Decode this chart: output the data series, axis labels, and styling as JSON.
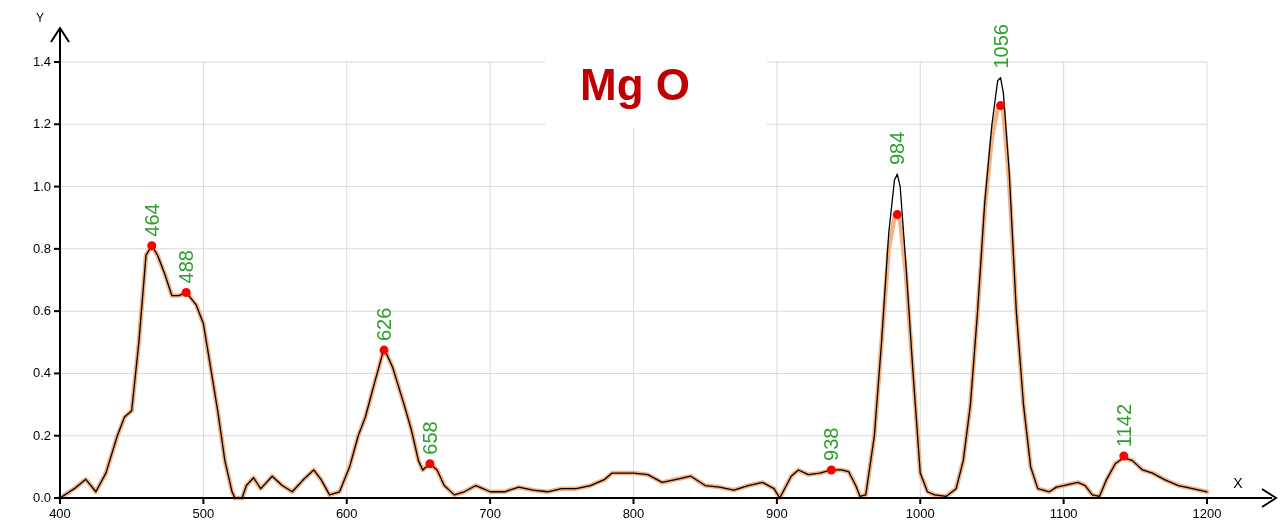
{
  "chart_data": {
    "type": "line",
    "title": "Mg O",
    "xlabel": "X",
    "ylabel": "Y",
    "xlim": [
      400,
      1200
    ],
    "ylim": [
      0,
      1.4
    ],
    "xticks": [
      400,
      500,
      600,
      700,
      800,
      900,
      1000,
      1100,
      1200
    ],
    "yticks": [
      {
        "value": 0,
        "label": "0.0"
      },
      {
        "value": 0.2,
        "label": "0.2"
      },
      {
        "value": 0.4,
        "label": "0.4"
      },
      {
        "value": 0.6,
        "label": "0.6"
      },
      {
        "value": 0.8,
        "label": "0.8"
      },
      {
        "value": 1.0,
        "label": "1.0"
      },
      {
        "value": 1.2,
        "label": "1.2"
      },
      {
        "value": 1.4,
        "label": "1.4"
      }
    ],
    "grid": true,
    "marker": "none",
    "line_style": "solid",
    "series": [
      {
        "color": "#f4b183",
        "x": [
          400,
          410,
          418,
          425,
          432,
          440,
          445,
          450,
          455,
          460,
          464,
          468,
          473,
          478,
          483,
          488,
          495,
          500,
          505,
          510,
          515,
          520,
          522,
          527,
          530,
          535,
          540,
          548,
          555,
          562,
          570,
          577,
          582,
          588,
          595,
          602,
          608,
          613,
          620,
          626,
          632,
          640,
          645,
          650,
          653,
          658,
          663,
          668,
          675,
          682,
          690,
          695,
          700,
          710,
          720,
          730,
          740,
          750,
          760,
          770,
          780,
          785,
          795,
          800,
          810,
          820,
          830,
          840,
          850,
          860,
          870,
          880,
          890,
          898,
          902,
          910,
          915,
          922,
          930,
          938,
          945,
          950,
          955,
          958,
          962,
          968,
          973,
          978,
          982,
          984,
          986,
          990,
          995,
          1000,
          1005,
          1010,
          1018,
          1025,
          1030,
          1035,
          1040,
          1045,
          1050,
          1054,
          1056,
          1058,
          1062,
          1067,
          1072,
          1077,
          1082,
          1090,
          1095,
          1100,
          1110,
          1115,
          1120,
          1125,
          1130,
          1136,
          1142,
          1148,
          1155,
          1162,
          1170,
          1180,
          1190,
          1200
        ],
        "values": [
          0,
          0.03,
          0.06,
          0.02,
          0.08,
          0.2,
          0.26,
          0.28,
          0.5,
          0.78,
          0.81,
          0.78,
          0.72,
          0.65,
          0.65,
          0.66,
          0.62,
          0.56,
          0.42,
          0.28,
          0.12,
          0.02,
          0,
          0,
          0.04,
          0.065,
          0.03,
          0.07,
          0.04,
          0.02,
          0.06,
          0.09,
          0.06,
          0.01,
          0.02,
          0.1,
          0.2,
          0.26,
          0.38,
          0.48,
          0.42,
          0.3,
          0.22,
          0.12,
          0.09,
          0.11,
          0.09,
          0.04,
          0.01,
          0.02,
          0.04,
          0.03,
          0.02,
          0.02,
          0.035,
          0.025,
          0.02,
          0.03,
          0.03,
          0.04,
          0.06,
          0.08,
          0.08,
          0.08,
          0.075,
          0.05,
          0.06,
          0.07,
          0.04,
          0.035,
          0.025,
          0.04,
          0.05,
          0.03,
          0,
          0.07,
          0.09,
          0.075,
          0.08,
          0.09,
          0.09,
          0.085,
          0.04,
          0.005,
          0.01,
          0.2,
          0.5,
          0.8,
          0.9,
          0.91,
          0.89,
          0.72,
          0.4,
          0.08,
          0.02,
          0.01,
          0.005,
          0.03,
          0.12,
          0.3,
          0.6,
          0.93,
          1.16,
          1.25,
          1.26,
          1.24,
          1.02,
          0.6,
          0.3,
          0.1,
          0.03,
          0.02,
          0.035,
          0.04,
          0.05,
          0.04,
          0.01,
          0.005,
          0.06,
          0.11,
          0.13,
          0.12,
          0.09,
          0.08,
          0.06,
          0.04,
          0.03,
          0.02
        ]
      },
      {
        "color": "#000000",
        "x": [
          400,
          410,
          418,
          425,
          432,
          440,
          445,
          450,
          455,
          460,
          464,
          468,
          473,
          478,
          483,
          488,
          495,
          500,
          505,
          510,
          515,
          520,
          522,
          527,
          530,
          535,
          540,
          548,
          555,
          562,
          570,
          577,
          582,
          588,
          595,
          602,
          608,
          613,
          620,
          626,
          632,
          640,
          645,
          650,
          653,
          658,
          663,
          668,
          675,
          682,
          690,
          695,
          700,
          710,
          720,
          730,
          740,
          750,
          760,
          770,
          780,
          785,
          795,
          800,
          810,
          820,
          830,
          840,
          850,
          860,
          870,
          880,
          890,
          898,
          902,
          910,
          915,
          922,
          930,
          938,
          945,
          950,
          955,
          958,
          962,
          968,
          973,
          978,
          982,
          984,
          986,
          990,
          995,
          1000,
          1005,
          1010,
          1018,
          1025,
          1030,
          1035,
          1040,
          1045,
          1050,
          1054,
          1056,
          1058,
          1062,
          1067,
          1072,
          1077,
          1082,
          1090,
          1095,
          1100,
          1110,
          1115,
          1120,
          1125,
          1130,
          1136,
          1142,
          1148,
          1155,
          1162,
          1170,
          1180,
          1190,
          1200
        ],
        "values": [
          0,
          0.03,
          0.06,
          0.02,
          0.08,
          0.2,
          0.26,
          0.28,
          0.5,
          0.78,
          0.81,
          0.78,
          0.72,
          0.65,
          0.65,
          0.66,
          0.62,
          0.56,
          0.42,
          0.28,
          0.12,
          0.02,
          0,
          0,
          0.04,
          0.065,
          0.03,
          0.07,
          0.04,
          0.02,
          0.06,
          0.09,
          0.06,
          0.01,
          0.02,
          0.1,
          0.2,
          0.26,
          0.38,
          0.48,
          0.42,
          0.3,
          0.22,
          0.12,
          0.09,
          0.11,
          0.09,
          0.04,
          0.01,
          0.02,
          0.04,
          0.03,
          0.02,
          0.02,
          0.035,
          0.025,
          0.02,
          0.03,
          0.03,
          0.04,
          0.06,
          0.08,
          0.08,
          0.08,
          0.075,
          0.05,
          0.06,
          0.07,
          0.04,
          0.035,
          0.025,
          0.04,
          0.05,
          0.03,
          0,
          0.07,
          0.09,
          0.075,
          0.08,
          0.09,
          0.09,
          0.085,
          0.04,
          0.005,
          0.01,
          0.2,
          0.5,
          0.85,
          1.02,
          1.04,
          1.0,
          0.75,
          0.4,
          0.08,
          0.02,
          0.01,
          0.005,
          0.03,
          0.12,
          0.3,
          0.6,
          0.95,
          1.2,
          1.34,
          1.35,
          1.3,
          1.05,
          0.6,
          0.3,
          0.1,
          0.03,
          0.02,
          0.035,
          0.04,
          0.05,
          0.04,
          0.01,
          0.005,
          0.06,
          0.11,
          0.13,
          0.12,
          0.09,
          0.08,
          0.06,
          0.04,
          0.03,
          0.02
        ]
      },
      {
        "type": "scatter",
        "color": "#ff0000",
        "marker": "circle",
        "x": [
          464,
          488,
          626,
          658,
          938,
          984,
          1056,
          1142
        ],
        "values": [
          0.81,
          0.66,
          0.475,
          0.11,
          0.09,
          0.91,
          1.26,
          0.135
        ]
      }
    ],
    "annotations": [
      {
        "text": "464",
        "x": 464,
        "y": 0.81
      },
      {
        "text": "488",
        "x": 488,
        "y": 0.66
      },
      {
        "text": "626",
        "x": 626,
        "y": 0.475
      },
      {
        "text": "658",
        "x": 658,
        "y": 0.11
      },
      {
        "text": "938",
        "x": 938,
        "y": 0.09
      },
      {
        "text": "984",
        "x": 984,
        "y": 1.04
      },
      {
        "text": "1056",
        "x": 1056,
        "y": 1.35
      },
      {
        "text": "1142",
        "x": 1142,
        "y": 0.135
      }
    ]
  }
}
